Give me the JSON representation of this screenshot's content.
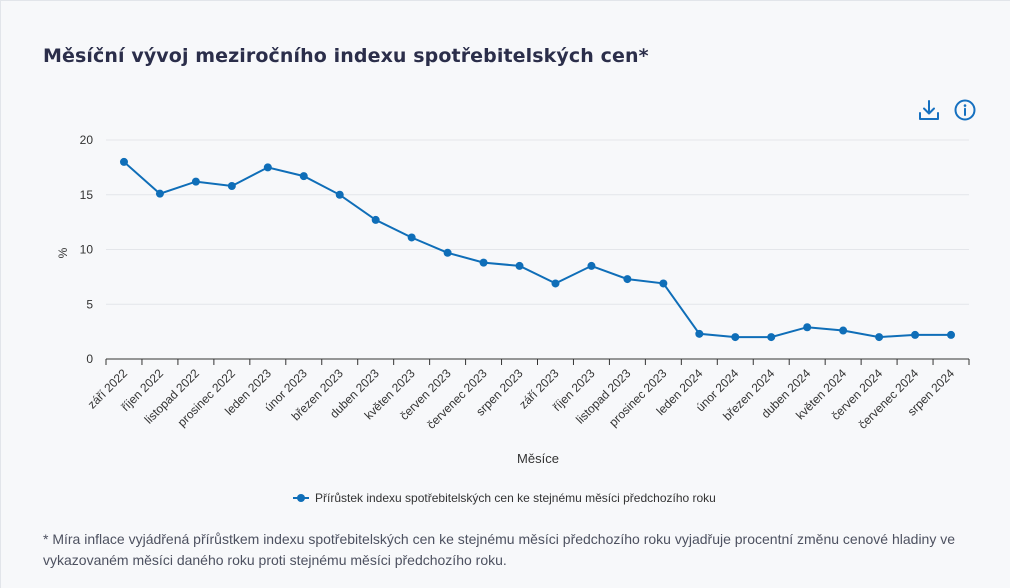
{
  "title": "Měsíční vývoj meziročního indexu spotřebitelských cen*",
  "toolbar": {
    "download_icon": "download-icon",
    "info_icon": "info-icon"
  },
  "colors": {
    "series": "#0f6eb8",
    "grid": "#e4e6ea",
    "axis": "#333333",
    "text": "#2b2e4a"
  },
  "chart_data": {
    "type": "line",
    "ylabel": "%",
    "xlabel": "Měsíce",
    "ylim": [
      0,
      20
    ],
    "yticks": [
      0,
      5,
      10,
      15,
      20
    ],
    "grid": "horizontal",
    "legend_position": "bottom",
    "categories": [
      "září 2022",
      "říjen 2022",
      "listopad 2022",
      "prosinec 2022",
      "leden 2023",
      "únor 2023",
      "březen 2023",
      "duben 2023",
      "květen 2023",
      "červen 2023",
      "červenec 2023",
      "srpen 2023",
      "září 2023",
      "říjen 2023",
      "listopad 2023",
      "prosinec 2023",
      "leden 2024",
      "únor 2024",
      "březen 2024",
      "duben 2024",
      "květen 2024",
      "červen 2024",
      "červenec 2024",
      "srpen 2024"
    ],
    "series": [
      {
        "name": "Přírůstek indexu spotřebitelských cen ke stejnému měsíci předchozího roku",
        "values": [
          18.0,
          15.1,
          16.2,
          15.8,
          17.5,
          16.7,
          15.0,
          12.7,
          11.1,
          9.7,
          8.8,
          8.5,
          6.9,
          8.5,
          7.3,
          6.9,
          2.3,
          2.0,
          2.0,
          2.9,
          2.6,
          2.0,
          2.2,
          2.2
        ]
      }
    ]
  },
  "footnote": "* Míra inflace vyjádřená přírůstkem indexu spotřebitelských cen ke stejnému měsíci předchozího roku vyjadřuje procentní změnu cenové hladiny ve vykazovaném měsíci daného roku proti stejnému měsíci předchozího roku."
}
